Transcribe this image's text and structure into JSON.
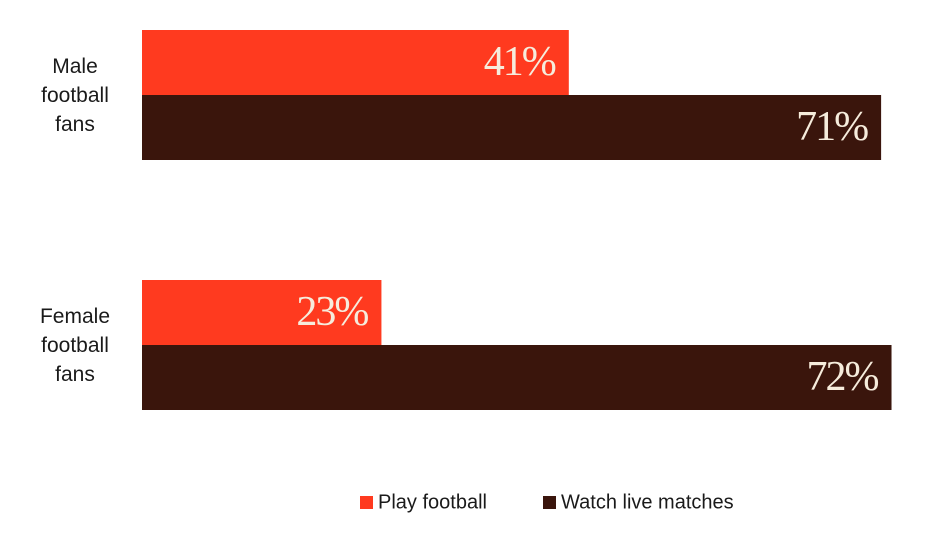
{
  "chart_data": {
    "type": "bar",
    "orientation": "horizontal",
    "categories": [
      "Male football fans",
      "Female football fans"
    ],
    "series": [
      {
        "name": "Play football",
        "color": "#ff3a1f",
        "values": [
          41,
          23
        ],
        "value_labels": [
          "41%",
          "23%"
        ]
      },
      {
        "name": "Watch live matches",
        "color": "#3a150c",
        "values": [
          71,
          72
        ],
        "value_labels": [
          "71%",
          "72%"
        ]
      }
    ]
  }
}
